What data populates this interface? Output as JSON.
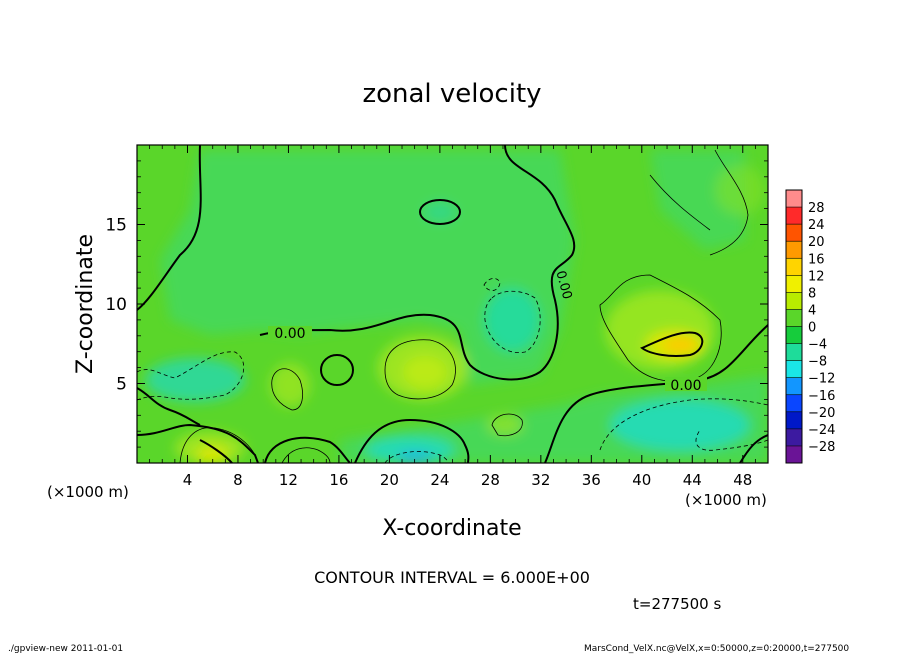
{
  "chart_data": {
    "type": "contour",
    "title": "zonal velocity",
    "xlabel": "X-coordinate",
    "ylabel": "Z-coordinate",
    "x_unit": "(×1000 m)",
    "y_unit": "(×1000 m)",
    "xlim": [
      0,
      50
    ],
    "ylim": [
      0,
      20
    ],
    "x_ticks": [
      4,
      8,
      12,
      16,
      20,
      24,
      28,
      32,
      36,
      40,
      44,
      48
    ],
    "y_ticks": [
      5,
      10,
      15
    ],
    "contour_interval_text": "CONTOUR INTERVAL = 6.000E+00",
    "time_text": "t=277500 s",
    "contour_labels": [
      "0.00",
      "0.00",
      "0.00"
    ],
    "colorbar": {
      "labels": [
        "28",
        "24",
        "20",
        "16",
        "12",
        "8",
        "4",
        "0",
        "−4",
        "−8",
        "−12",
        "−16",
        "−20",
        "−24",
        "−28"
      ],
      "colors": [
        "#ff8c8c",
        "#ff2a2a",
        "#ff5400",
        "#ff9a00",
        "#ffd400",
        "#f0f000",
        "#b8ec00",
        "#5ad62a",
        "#16cc3c",
        "#1edc9a",
        "#1ae6e6",
        "#1296ff",
        "#0a46ff",
        "#0018c8",
        "#3c1aa0",
        "#6a1496"
      ]
    },
    "footer_left": "./gpview-new   2011-01-01",
    "footer_right": "MarsCond_VelX.nc@VelX,x=0:50000,z=0:20000,t=277500"
  }
}
